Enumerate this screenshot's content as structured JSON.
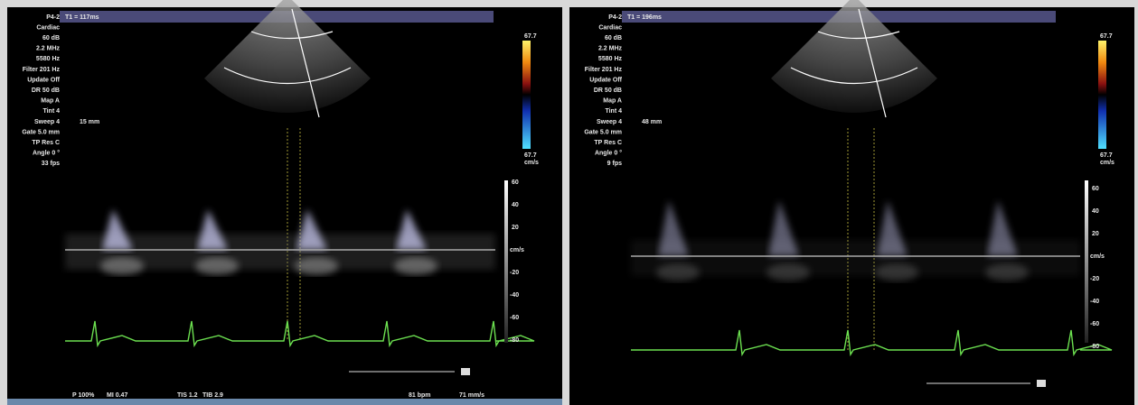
{
  "panels": [
    {
      "header": "T1 = 117ms",
      "settings": [
        "P4-2",
        "Cardiac",
        "60 dB",
        "2.2 MHz",
        "5580 Hz",
        "Filter 201 Hz",
        "Update Off",
        "DR 50 dB",
        "Map A",
        "Tint 4",
        "Sweep 4",
        "Gate 5.0 mm",
        "TP Res C",
        "Angle 0 °",
        "33 fps"
      ],
      "depth": "15 mm",
      "color_scale": [
        "67.7",
        "67.7",
        "cm/s"
      ],
      "velocity_scale": {
        "above": [
          "60",
          "40",
          "20"
        ],
        "unit": "cm/s",
        "below": [
          "-20",
          "-40",
          "-60",
          "-80"
        ]
      },
      "footer": [
        "P 100%",
        "MI 0.47",
        "TIS 1.2",
        "TIB 2.9",
        "81 bpm",
        "71 mm/s"
      ]
    },
    {
      "header": "T1 = 196ms",
      "settings": [
        "P4-2",
        "Cardiac",
        "60 dB",
        "2.2 MHz",
        "5580 Hz",
        "Filter 201 Hz",
        "Update Off",
        "DR 50 dB",
        "Map A",
        "Tint 4",
        "Sweep 4",
        "Gate 5.0 mm",
        "TP Res C",
        "Angle 0 °",
        "9 fps"
      ],
      "depth": "48 mm",
      "color_scale": [
        "67.7",
        "67.7",
        "cm/s"
      ],
      "velocity_scale": {
        "above": [
          "60",
          "40",
          "20"
        ],
        "unit": "cm/s",
        "below": [
          "-20",
          "-40",
          "-60",
          "-80"
        ]
      },
      "footer": []
    }
  ]
}
